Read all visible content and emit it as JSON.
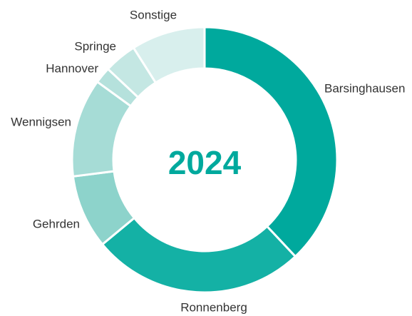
{
  "chart_data": {
    "type": "donut",
    "center_label": "2024",
    "categories": [
      "Barsinghausen",
      "Ronnenberg",
      "Gehrden",
      "Wennigsen",
      "Hannover",
      "Springe",
      "Sonstige"
    ],
    "values": [
      38,
      26,
      9,
      12,
      2,
      4,
      9
    ],
    "colors": [
      "#00a99d",
      "#14b1a5",
      "#8dd3cb",
      "#a6dcd6",
      "#b5e1dc",
      "#c4e7e3",
      "#d8efed"
    ]
  }
}
